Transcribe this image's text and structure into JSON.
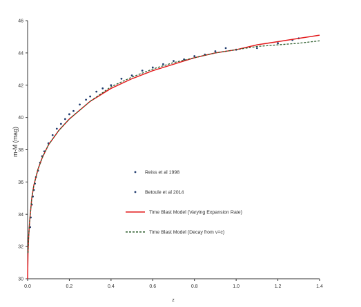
{
  "chart_data": {
    "type": "scatter",
    "title": "",
    "xlabel": "z",
    "ylabel": "m-M (mag)",
    "xlim": [
      0.0,
      1.4
    ],
    "ylim": [
      30,
      46
    ],
    "x_ticks": [
      "0.0",
      "0.2",
      "0.4",
      "0.6",
      "0.8",
      "1.0",
      "1.2",
      "1.4"
    ],
    "y_ticks": [
      "30",
      "32",
      "34",
      "36",
      "38",
      "40",
      "42",
      "44",
      "46"
    ],
    "grid": false,
    "legend_position": "center",
    "legend": [
      {
        "label": "Reiss et al 1998",
        "marker": "dot",
        "color": "#1f3b6e"
      },
      {
        "label": "Betoule et al 2014",
        "marker": "dot",
        "color": "#1f3b6e"
      },
      {
        "label": "Time Blast Model (Varying Expansion Rate)",
        "marker": "line",
        "color": "#e31a1c"
      },
      {
        "label": "Time Blast Model (Decay from v=c)",
        "marker": "dashed-line",
        "color": "#2e5e2e"
      }
    ],
    "series": [
      {
        "type": "scatter",
        "color": "#1f3b6e",
        "points": [
          [
            0.012,
            33.2
          ],
          [
            0.015,
            33.8
          ],
          [
            0.02,
            34.6
          ],
          [
            0.025,
            35.1
          ],
          [
            0.03,
            35.5
          ],
          [
            0.035,
            35.9
          ],
          [
            0.04,
            36.3
          ],
          [
            0.05,
            36.7
          ],
          [
            0.06,
            37.2
          ],
          [
            0.07,
            37.6
          ],
          [
            0.08,
            37.9
          ],
          [
            0.1,
            38.4
          ],
          [
            0.12,
            38.9
          ],
          [
            0.14,
            39.3
          ],
          [
            0.16,
            39.6
          ],
          [
            0.18,
            39.9
          ],
          [
            0.2,
            40.2
          ],
          [
            0.22,
            40.4
          ],
          [
            0.25,
            40.8
          ],
          [
            0.28,
            41.1
          ],
          [
            0.3,
            41.3
          ],
          [
            0.33,
            41.6
          ],
          [
            0.36,
            41.8
          ],
          [
            0.4,
            42.0
          ],
          [
            0.45,
            42.4
          ],
          [
            0.5,
            42.6
          ],
          [
            0.55,
            42.9
          ],
          [
            0.6,
            43.1
          ],
          [
            0.65,
            43.3
          ],
          [
            0.7,
            43.5
          ],
          [
            0.75,
            43.6
          ],
          [
            0.8,
            43.8
          ],
          [
            0.85,
            43.9
          ],
          [
            0.9,
            44.1
          ],
          [
            0.95,
            44.3
          ],
          [
            1.0,
            44.2
          ],
          [
            1.1,
            44.3
          ],
          [
            1.2,
            44.6
          ],
          [
            1.27,
            44.8
          ],
          [
            1.3,
            44.9
          ]
        ]
      },
      {
        "type": "line",
        "color": "#e31a1c",
        "x": [
          0.0,
          0.002,
          0.005,
          0.01,
          0.02,
          0.03,
          0.05,
          0.07,
          0.1,
          0.15,
          0.2,
          0.3,
          0.4,
          0.5,
          0.6,
          0.7,
          0.8,
          0.9,
          1.0,
          1.1,
          1.2,
          1.3,
          1.4
        ],
        "y": [
          30.0,
          31.6,
          32.6,
          33.6,
          35.0,
          35.8,
          36.8,
          37.5,
          38.3,
          39.2,
          39.9,
          41.0,
          41.8,
          42.4,
          42.9,
          43.3,
          43.7,
          44.0,
          44.2,
          44.5,
          44.7,
          44.9,
          45.1
        ]
      },
      {
        "type": "dashed-line",
        "color": "#2e5e2e",
        "x": [
          0.002,
          0.005,
          0.01,
          0.02,
          0.03,
          0.05,
          0.07,
          0.1,
          0.15,
          0.2,
          0.3,
          0.4,
          0.5,
          0.6,
          0.7,
          0.8,
          0.9,
          1.0,
          1.1,
          1.2,
          1.3,
          1.4
        ],
        "y": [
          31.6,
          32.6,
          33.6,
          35.0,
          35.8,
          36.8,
          37.5,
          38.3,
          39.2,
          39.9,
          41.0,
          41.9,
          42.5,
          43.0,
          43.4,
          43.7,
          44.0,
          44.2,
          44.4,
          44.5,
          44.6,
          44.75
        ]
      }
    ]
  }
}
